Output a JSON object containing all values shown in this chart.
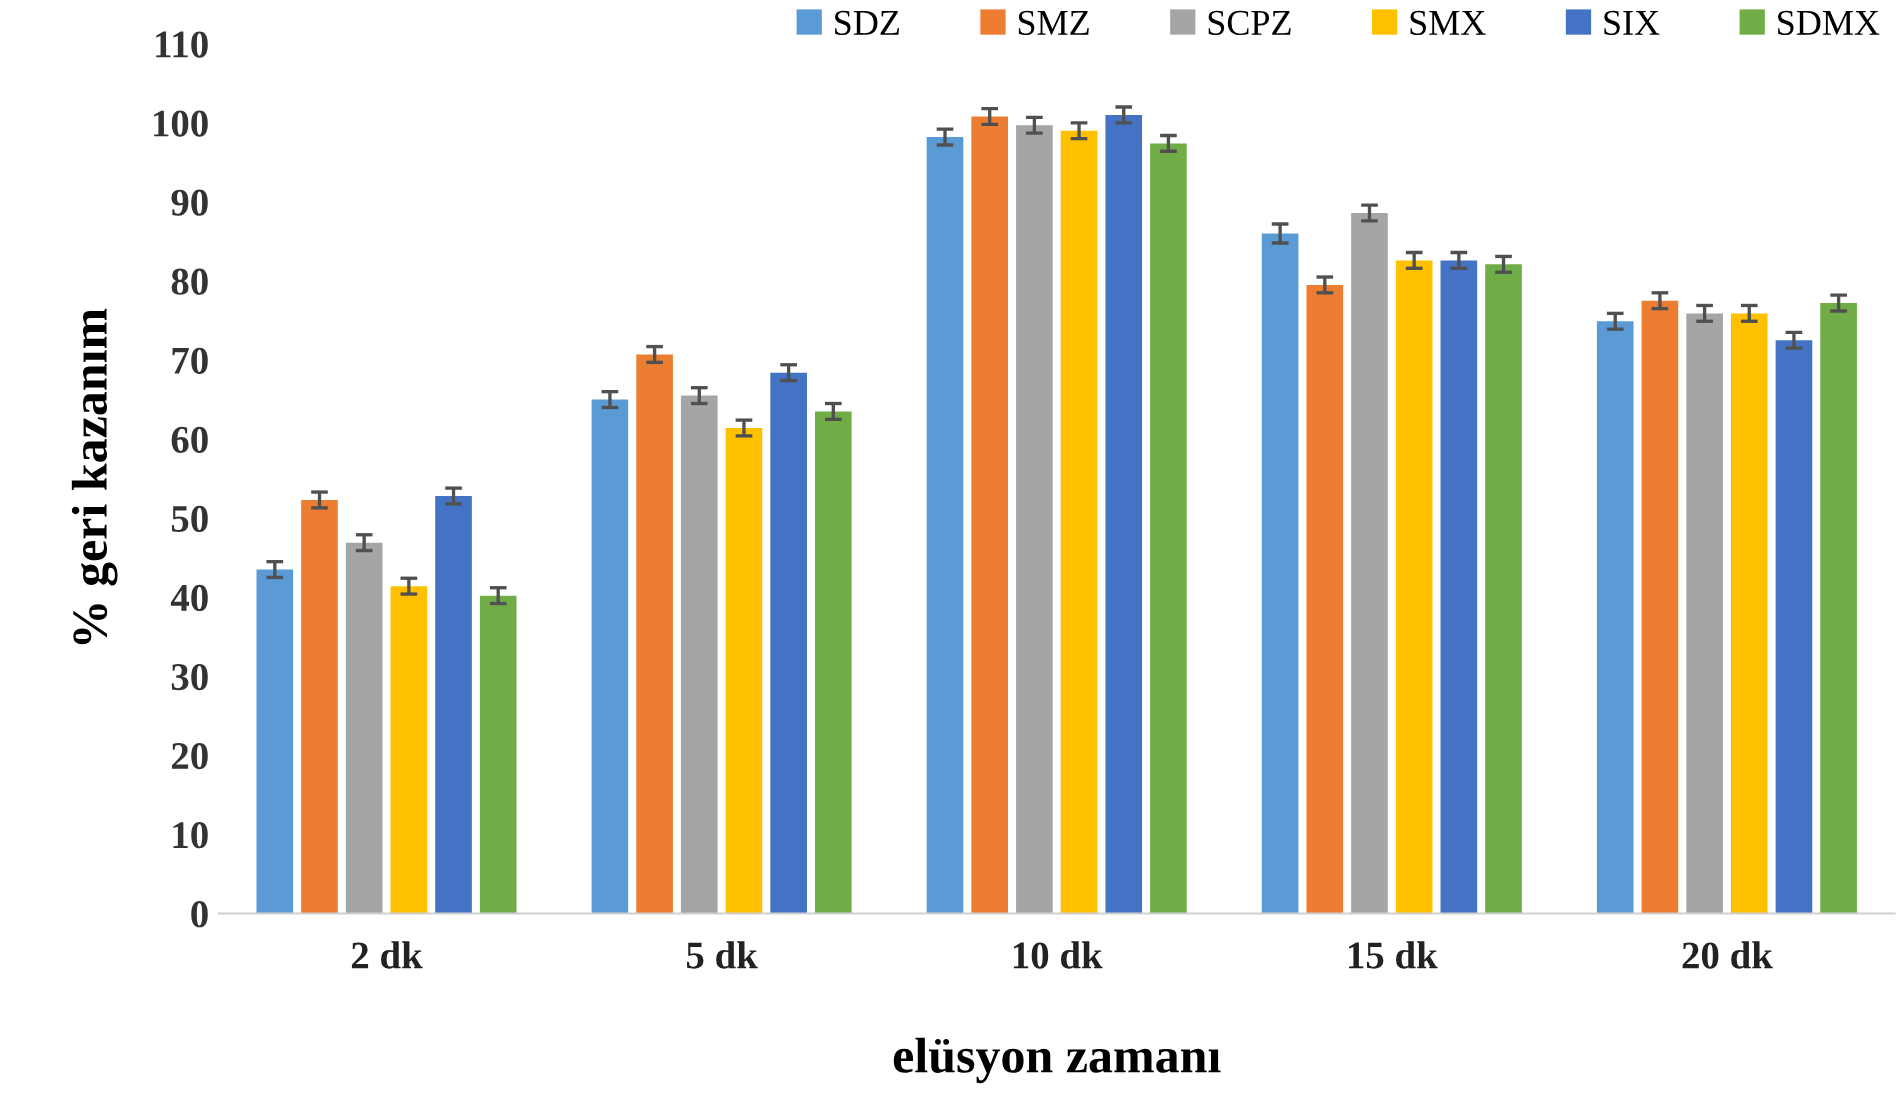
{
  "chart_data": {
    "type": "bar",
    "xlabel": "elüsyon zamanı",
    "ylabel": "% geri kazanım",
    "categories": [
      "2 dk",
      "5 dk",
      "10 dk",
      "15 dk",
      "20 dk"
    ],
    "series": [
      {
        "name": "SDZ",
        "color": "#5b9bd5",
        "values": [
          43.5,
          65.0,
          98.2,
          86.0,
          74.9
        ],
        "errors": [
          1,
          1,
          1,
          1.2,
          1
        ]
      },
      {
        "name": "SMZ",
        "color": "#ed7d31",
        "values": [
          52.3,
          70.7,
          100.8,
          79.5,
          77.5
        ],
        "errors": [
          1,
          1,
          1,
          1,
          1
        ]
      },
      {
        "name": "SCPZ",
        "color": "#a5a5a5",
        "values": [
          46.9,
          65.5,
          99.7,
          88.6,
          75.9
        ],
        "errors": [
          1,
          1,
          1,
          1,
          1
        ]
      },
      {
        "name": "SMX",
        "color": "#ffc000",
        "values": [
          41.4,
          61.4,
          99.0,
          82.6,
          75.9
        ],
        "errors": [
          1,
          1,
          1,
          1,
          1
        ]
      },
      {
        "name": "SIX",
        "color": "#4472c4",
        "values": [
          52.8,
          68.4,
          101.0,
          82.6,
          72.5
        ],
        "errors": [
          1,
          1,
          1,
          1,
          1
        ]
      },
      {
        "name": "SDMX",
        "color": "#70ad47",
        "values": [
          40.2,
          63.5,
          97.4,
          82.1,
          77.2
        ],
        "errors": [
          1,
          1,
          1,
          1,
          1
        ]
      }
    ],
    "ylim": [
      0,
      110
    ],
    "yticks": [
      0,
      10,
      20,
      30,
      40,
      50,
      60,
      70,
      80,
      90,
      100,
      110
    ],
    "grid": false,
    "legend": "top right"
  }
}
